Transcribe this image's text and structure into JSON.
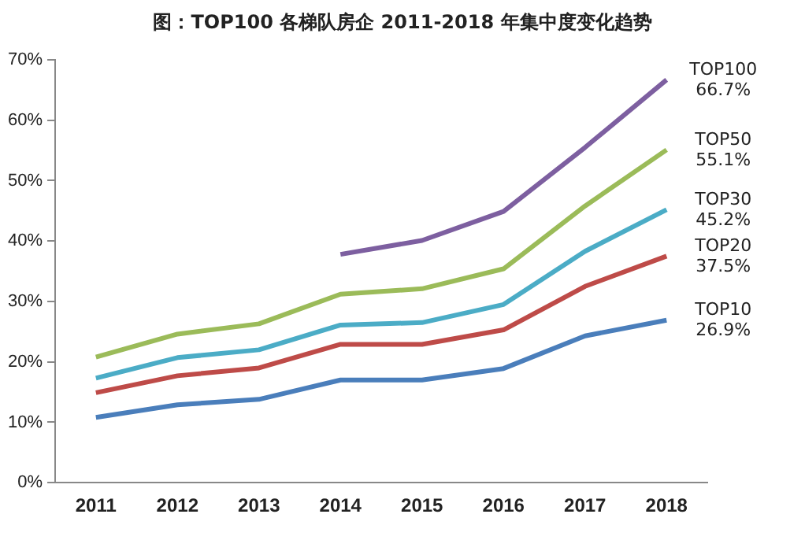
{
  "chart_data": {
    "type": "line",
    "title": "图：TOP100 各梯队房企 2011-2018 年集中度变化趋势",
    "categories": [
      "2011",
      "2012",
      "2013",
      "2014",
      "2015",
      "2016",
      "2017",
      "2018"
    ],
    "series": [
      {
        "name": "TOP10",
        "color": "#4a7ebb",
        "values": [
          10.8,
          12.9,
          13.8,
          17,
          17,
          18.9,
          24.3,
          26.9
        ],
        "value_labels": [
          null,
          null,
          null,
          null,
          null,
          null,
          null,
          "26.9%"
        ]
      },
      {
        "name": "TOP20",
        "color": "#be4b48",
        "values": [
          14.9,
          17.7,
          19,
          22.9,
          22.9,
          25.3,
          32.5,
          37.5
        ],
        "value_labels": [
          null,
          null,
          null,
          null,
          null,
          null,
          null,
          "37.5%"
        ]
      },
      {
        "name": "TOP30",
        "color": "#4bacc6",
        "values": [
          17.3,
          20.7,
          22,
          26.1,
          26.5,
          29.5,
          38.3,
          45.2
        ],
        "value_labels": [
          null,
          null,
          null,
          null,
          null,
          null,
          null,
          "45.2%"
        ]
      },
      {
        "name": "TOP50",
        "color": "#9bbb59",
        "values": [
          20.8,
          24.6,
          26.3,
          31.2,
          32.1,
          35.4,
          45.8,
          55.1
        ],
        "value_labels": [
          null,
          null,
          null,
          null,
          null,
          null,
          null,
          "55.1%"
        ]
      },
      {
        "name": "TOP100",
        "color": "#7d5fa0",
        "values": [
          null,
          null,
          null,
          37.8,
          40.1,
          44.9,
          55.5,
          66.7
        ],
        "value_labels": [
          null,
          null,
          null,
          null,
          null,
          null,
          null,
          "66.7%"
        ]
      }
    ],
    "ylim": [
      0,
      70
    ],
    "yticks": [
      {
        "value": 0,
        "label": "0%"
      },
      {
        "value": 10,
        "label": "10%"
      },
      {
        "value": 20,
        "label": "20%"
      },
      {
        "value": 30,
        "label": "30%"
      },
      {
        "value": 40,
        "label": "40%"
      },
      {
        "value": 50,
        "label": "50%"
      },
      {
        "value": 60,
        "label": "60%"
      },
      {
        "value": 70,
        "label": "70%"
      }
    ],
    "grid": false,
    "legend": false,
    "marker": "none",
    "line_style": "solid"
  }
}
